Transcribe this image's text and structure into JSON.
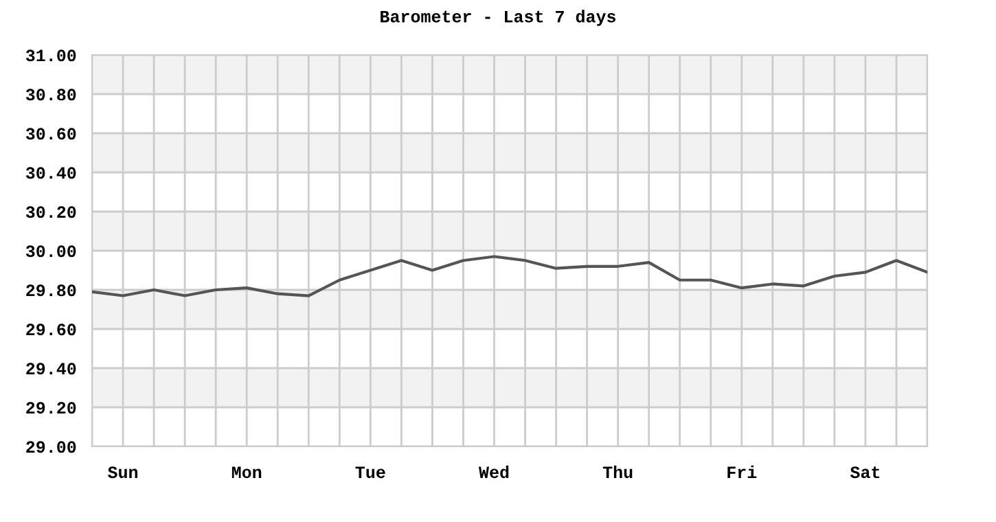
{
  "chart_data": {
    "type": "line",
    "title": "Barometer - Last 7 days",
    "categories": [
      null,
      "Sun",
      null,
      null,
      null,
      "Mon",
      null,
      null,
      null,
      "Tue",
      null,
      null,
      null,
      "Wed",
      null,
      null,
      null,
      "Thu",
      null,
      null,
      null,
      "Fri",
      null,
      null,
      null,
      "Sat",
      null,
      null
    ],
    "series": [
      {
        "color": "#555555",
        "values": [
          29.79,
          29.77,
          29.8,
          29.77,
          29.8,
          29.81,
          29.78,
          29.77,
          29.85,
          29.9,
          29.95,
          29.9,
          29.95,
          29.97,
          29.95,
          29.91,
          29.92,
          29.92,
          29.94,
          29.85,
          29.85,
          29.81,
          29.83,
          29.82,
          29.87,
          29.89,
          29.95,
          29.89
        ]
      }
    ],
    "ylim": [
      29.0,
      31.0
    ],
    "yticks": [
      {
        "value": 29.0,
        "label": "29.00"
      },
      {
        "value": 29.2,
        "label": "29.20"
      },
      {
        "value": 29.4,
        "label": "29.40"
      },
      {
        "value": 29.6,
        "label": "29.60"
      },
      {
        "value": 29.8,
        "label": "29.80"
      },
      {
        "value": 30.0,
        "label": "30.00"
      },
      {
        "value": 30.2,
        "label": "30.20"
      },
      {
        "value": 30.4,
        "label": "30.40"
      },
      {
        "value": 30.6,
        "label": "30.60"
      },
      {
        "value": 30.8,
        "label": "30.80"
      },
      {
        "value": 31.0,
        "label": "31.00"
      }
    ],
    "bands": [
      {
        "axis": "y",
        "from": 29.2,
        "to": 29.4,
        "color": "#f2f2f2"
      },
      {
        "axis": "y",
        "from": 29.6,
        "to": 29.8,
        "color": "#f2f2f2"
      },
      {
        "axis": "y",
        "from": 30.0,
        "to": 30.2,
        "color": "#f2f2f2"
      },
      {
        "axis": "y",
        "from": 30.4,
        "to": 30.6,
        "color": "#f2f2f2"
      },
      {
        "axis": "y",
        "from": 30.8,
        "to": 31.0,
        "color": "#f2f2f2"
      }
    ],
    "grid": true,
    "marker": "none",
    "line_style": "solid"
  }
}
